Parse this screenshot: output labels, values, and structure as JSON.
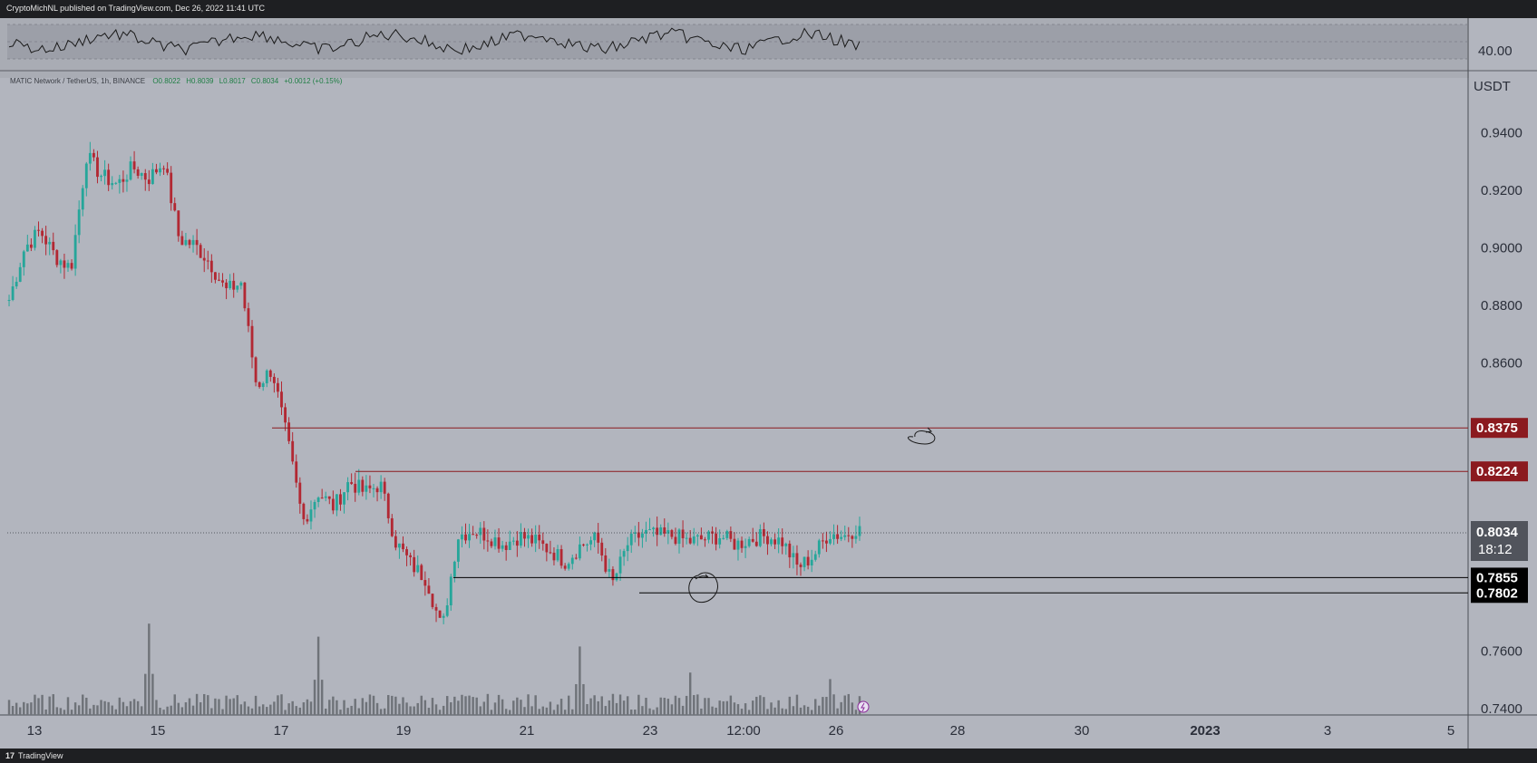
{
  "header": {
    "published": "CryptoMichNL published on TradingView.com, Dec 26, 2022 11:41 UTC"
  },
  "footer": {
    "logo": "17",
    "brand": "TradingView"
  },
  "legend": {
    "symbol": "MATIC Network / TetherUS, 1h, BINANCE",
    "open": "O0.8022",
    "high": "H0.8039",
    "low": "L0.8017",
    "close": "C0.8034",
    "change": "+0.0012 (+0.15%)"
  },
  "indicator": {
    "level_label": "40.00"
  },
  "price_axis": {
    "unit": "USDT",
    "countdown": "18:12"
  },
  "colors": {
    "bull": "#26a69a",
    "bear": "#b22833",
    "resistance": "#8b1a1f",
    "support": "#000000",
    "rsi_line": "#1a1a1a",
    "volume": "#6f7379"
  },
  "chart_data": {
    "type": "candlestick",
    "symbol": "MATIC/USDT",
    "timeframe": "1h",
    "ylim": [
      0.74,
      0.96
    ],
    "y_ticks": [
      "0.9400",
      "0.9200",
      "0.9000",
      "0.8800",
      "0.8600",
      "0.7600",
      "0.7400"
    ],
    "x_ticks": [
      "13",
      "15",
      "17",
      "19",
      "21",
      "23",
      "12:00",
      "26",
      "28",
      "30",
      "2023",
      "3",
      "5"
    ],
    "last_price": 0.8034,
    "horizontal_levels": [
      {
        "label": "0.8375",
        "value": 0.8375,
        "role": "resistance"
      },
      {
        "label": "0.8224",
        "value": 0.8224,
        "role": "resistance"
      },
      {
        "label": "0.7855",
        "value": 0.7855,
        "role": "support"
      },
      {
        "label": "0.7802",
        "value": 0.7802,
        "role": "support"
      }
    ],
    "close_path": [
      [
        0,
        0.882
      ],
      [
        1,
        0.9
      ],
      [
        2,
        0.906
      ],
      [
        3,
        0.897
      ],
      [
        4,
        0.893
      ],
      [
        5,
        0.932
      ],
      [
        6,
        0.925
      ],
      [
        7,
        0.922
      ],
      [
        8,
        0.928
      ],
      [
        9,
        0.924
      ],
      [
        10,
        0.93
      ],
      [
        11,
        0.903
      ],
      [
        12,
        0.901
      ],
      [
        13,
        0.895
      ],
      [
        14,
        0.885
      ],
      [
        15,
        0.888
      ],
      [
        16,
        0.852
      ],
      [
        17,
        0.858
      ],
      [
        18,
        0.833
      ],
      [
        19,
        0.805
      ],
      [
        20,
        0.815
      ],
      [
        21,
        0.81
      ],
      [
        22,
        0.819
      ],
      [
        23,
        0.815
      ],
      [
        24,
        0.818
      ],
      [
        25,
        0.798
      ],
      [
        26,
        0.79
      ],
      [
        27,
        0.785
      ],
      [
        28,
        0.767
      ],
      [
        29,
        0.8
      ],
      [
        30,
        0.802
      ],
      [
        31,
        0.8
      ],
      [
        32,
        0.797
      ],
      [
        33,
        0.8
      ],
      [
        34,
        0.798
      ],
      [
        35,
        0.795
      ],
      [
        36,
        0.791
      ],
      [
        37,
        0.797
      ],
      [
        38,
        0.799
      ],
      [
        39,
        0.783
      ],
      [
        40,
        0.797
      ],
      [
        41,
        0.801
      ],
      [
        42,
        0.8
      ],
      [
        43,
        0.8
      ],
      [
        44,
        0.798
      ],
      [
        45,
        0.799
      ],
      [
        46,
        0.8
      ],
      [
        47,
        0.797
      ],
      [
        48,
        0.799
      ],
      [
        49,
        0.8
      ],
      [
        50,
        0.798
      ],
      [
        51,
        0.789
      ],
      [
        52,
        0.793
      ],
      [
        53,
        0.801
      ],
      [
        54,
        0.8
      ],
      [
        55,
        0.8034
      ]
    ],
    "volume_spikes": [
      [
        9,
        0.56
      ],
      [
        20,
        0.48
      ],
      [
        37,
        0.42
      ],
      [
        44,
        0.26
      ],
      [
        53,
        0.22
      ]
    ]
  }
}
